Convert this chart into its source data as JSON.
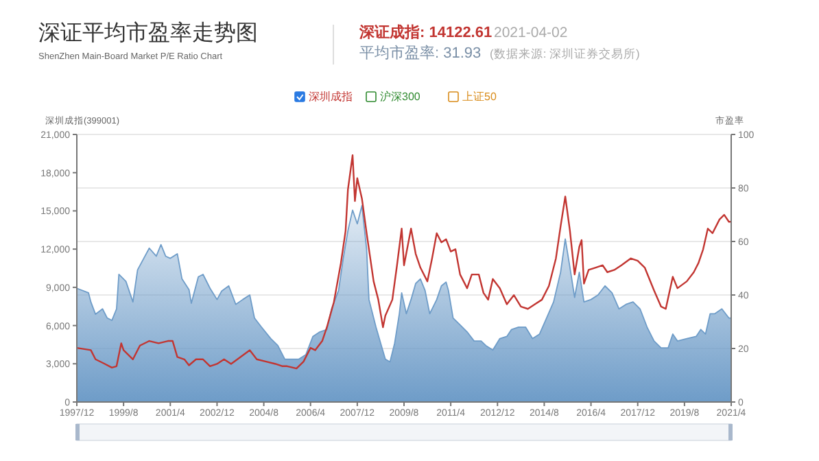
{
  "chart_data": {
    "type": "line",
    "title": "深证平均市盈率走势图",
    "subtitle": "ShenZhen Main-Board Market P/E Ratio Chart",
    "annotations": [
      "深证成指: 14122.61",
      "2021-04-02",
      "平均市盈率: 31.93",
      "(数据来源: 深圳证券交易所)"
    ],
    "ylabel": "深圳成指(399001)",
    "y2label": "市盈率",
    "xlim": [
      "1997-12",
      "2021-04"
    ],
    "xticks": [
      {
        "value": "1997-12",
        "label": "1997/12"
      },
      {
        "value": "1999-08",
        "label": "1999/8"
      },
      {
        "value": "2001-04",
        "label": "2001/4"
      },
      {
        "value": "2002-12",
        "label": "2002/12"
      },
      {
        "value": "2004-08",
        "label": "2004/8"
      },
      {
        "value": "2006-04",
        "label": "2006/4"
      },
      {
        "value": "2007-12",
        "label": "2007/12"
      },
      {
        "value": "2009-08",
        "label": "2009/8"
      },
      {
        "value": "2011-04",
        "label": "2011/4"
      },
      {
        "value": "2012-12",
        "label": "2012/12"
      },
      {
        "value": "2014-08",
        "label": "2014/8"
      },
      {
        "value": "2016-04",
        "label": "2016/4"
      },
      {
        "value": "2017-12",
        "label": "2017/12"
      },
      {
        "value": "2019-08",
        "label": "2019/8"
      },
      {
        "value": "2021-04",
        "label": "2021/4"
      }
    ],
    "ylim": [
      0,
      21000
    ],
    "yticks": [
      {
        "value": 0,
        "label": "0"
      },
      {
        "value": 3000,
        "label": "3,000"
      },
      {
        "value": 6000,
        "label": "6,000"
      },
      {
        "value": 9000,
        "label": "9,000"
      },
      {
        "value": 12000,
        "label": "12,000"
      },
      {
        "value": 15000,
        "label": "15,000"
      },
      {
        "value": 18000,
        "label": "18,000"
      },
      {
        "value": 21000,
        "label": "21,000"
      }
    ],
    "y2lim": [
      0,
      100
    ],
    "y2ticks": [
      0,
      20,
      40,
      60,
      80,
      100
    ],
    "grid": "y2",
    "legend": "top",
    "series": [
      {
        "type": "area",
        "axis": "y2",
        "color": "#6e9cc8",
        "x": [
          "1997-12",
          "1998-05",
          "1998-06",
          "1998-08",
          "1998-11",
          "1999-01",
          "1999-03",
          "1999-05",
          "1999-06",
          "1999-09",
          "1999-12",
          "2000-02",
          "2000-07",
          "2000-10",
          "2000-12",
          "2001-02",
          "2001-04",
          "2001-07",
          "2001-09",
          "2001-12",
          "2002-01",
          "2002-04",
          "2002-06",
          "2002-09",
          "2002-12",
          "2003-02",
          "2003-05",
          "2003-08",
          "2003-11",
          "2004-02",
          "2004-04",
          "2004-07",
          "2004-11",
          "2005-02",
          "2005-05",
          "2005-08",
          "2005-11",
          "2006-02",
          "2006-05",
          "2006-08",
          "2006-11",
          "2007-01",
          "2007-04",
          "2007-06",
          "2007-08",
          "2007-10",
          "2007-12",
          "2008-02",
          "2008-04",
          "2008-05",
          "2008-08",
          "2008-10",
          "2008-12",
          "2009-02",
          "2009-04",
          "2009-06",
          "2009-07",
          "2009-09",
          "2009-11",
          "2010-01",
          "2010-03",
          "2010-05",
          "2010-07",
          "2010-10",
          "2010-12",
          "2011-02",
          "2011-03",
          "2011-05",
          "2011-08",
          "2011-11",
          "2012-02",
          "2012-05",
          "2012-07",
          "2012-10",
          "2013-01",
          "2013-04",
          "2013-06",
          "2013-09",
          "2013-12",
          "2014-03",
          "2014-06",
          "2014-09",
          "2014-12",
          "2015-03",
          "2015-05",
          "2015-07",
          "2015-09",
          "2015-11",
          "2016-01",
          "2016-04",
          "2016-07",
          "2016-10",
          "2017-01",
          "2017-04",
          "2017-07",
          "2017-10",
          "2018-01",
          "2018-04",
          "2018-07",
          "2018-10",
          "2019-01",
          "2019-03",
          "2019-05",
          "2019-09",
          "2020-01",
          "2020-03",
          "2020-05",
          "2020-07",
          "2020-09",
          "2020-12",
          "2021-03",
          "2021-04"
        ],
        "values": [
          42.5,
          40.8,
          37.4,
          32.8,
          34.8,
          31.4,
          30.5,
          34.8,
          47.7,
          45.1,
          37.4,
          49.4,
          57.5,
          54.5,
          58.8,
          54.5,
          53.7,
          55.4,
          46,
          42,
          36.9,
          46.8,
          47.7,
          42.5,
          38.3,
          41.5,
          43.4,
          36.5,
          38.3,
          40,
          31.4,
          28,
          23.7,
          21.1,
          16,
          16,
          16,
          17.7,
          24.5,
          26.2,
          27.1,
          34.8,
          41.7,
          53.7,
          64,
          71.7,
          66.6,
          73.4,
          57.1,
          38.3,
          28,
          22,
          16,
          15,
          22,
          33,
          40.8,
          33,
          38.3,
          44.3,
          46,
          41.7,
          33,
          38.3,
          43.4,
          44.8,
          41.7,
          31.4,
          28.8,
          26.2,
          22.8,
          22.8,
          21.1,
          19.4,
          23.7,
          24.5,
          27.1,
          28,
          28,
          23.7,
          25.4,
          31.4,
          37.4,
          48.5,
          60.9,
          50.3,
          39.1,
          48.5,
          37.4,
          38.3,
          40,
          43.4,
          40.8,
          34.8,
          36.5,
          37.4,
          34.8,
          28,
          22.8,
          20.2,
          20.2,
          25.4,
          22.8,
          23.7,
          24.5,
          27.1,
          25.4,
          33,
          33,
          34.8,
          31.4,
          31.4
        ]
      },
      {
        "type": "line",
        "name": "深圳成指",
        "color": "#c23531",
        "x": [
          "1997-12",
          "1998-06",
          "1998-08",
          "1998-12",
          "1999-03",
          "1999-05",
          "1999-07",
          "1999-08",
          "1999-12",
          "2000-03",
          "2000-07",
          "2000-11",
          "2001-03",
          "2001-05",
          "2001-07",
          "2001-10",
          "2001-12",
          "2002-03",
          "2002-06",
          "2002-09",
          "2002-12",
          "2003-03",
          "2003-06",
          "2003-10",
          "2004-02",
          "2004-05",
          "2004-09",
          "2005-01",
          "2005-04",
          "2005-06",
          "2005-10",
          "2006-01",
          "2006-04",
          "2006-06",
          "2006-09",
          "2006-11",
          "2007-02",
          "2007-05",
          "2007-07",
          "2007-08",
          "2007-10",
          "2007-11",
          "2007-12",
          "2008-02",
          "2008-04",
          "2008-07",
          "2008-09",
          "2008-11",
          "2008-12",
          "2009-03",
          "2009-05",
          "2009-07",
          "2009-08",
          "2009-11",
          "2010-01",
          "2010-03",
          "2010-06",
          "2010-08",
          "2010-10",
          "2010-12",
          "2011-02",
          "2011-04",
          "2011-06",
          "2011-08",
          "2011-11",
          "2012-01",
          "2012-04",
          "2012-06",
          "2012-08",
          "2012-10",
          "2013-01",
          "2013-04",
          "2013-07",
          "2013-10",
          "2014-01",
          "2014-04",
          "2014-07",
          "2014-10",
          "2015-01",
          "2015-03",
          "2015-05",
          "2015-07",
          "2015-09",
          "2015-11",
          "2015-12",
          "2016-01",
          "2016-03",
          "2016-06",
          "2016-09",
          "2016-11",
          "2017-02",
          "2017-05",
          "2017-09",
          "2017-12",
          "2018-03",
          "2018-07",
          "2018-10",
          "2018-12",
          "2019-03",
          "2019-05",
          "2019-09",
          "2019-12",
          "2020-02",
          "2020-04",
          "2020-06",
          "2020-08",
          "2020-11",
          "2021-01",
          "2021-03",
          "2021-04"
        ],
        "values": [
          4250,
          4070,
          3350,
          2990,
          2700,
          2810,
          4610,
          4070,
          3350,
          4430,
          4790,
          4610,
          4790,
          4790,
          3530,
          3350,
          2880,
          3350,
          3350,
          2810,
          2990,
          3350,
          2990,
          3530,
          4070,
          3350,
          3170,
          2990,
          2810,
          2810,
          2630,
          3170,
          4250,
          4070,
          4790,
          5870,
          7850,
          10910,
          13430,
          16670,
          19370,
          15770,
          17570,
          15950,
          13250,
          9470,
          8030,
          5870,
          6770,
          8030,
          10730,
          13610,
          10730,
          13610,
          11630,
          10550,
          9470,
          11270,
          13250,
          12530,
          12780,
          11810,
          11990,
          10010,
          8930,
          10010,
          10010,
          8570,
          8030,
          9650,
          8930,
          7670,
          8390,
          7490,
          7310,
          7670,
          8030,
          9110,
          11270,
          13790,
          16130,
          13430,
          10010,
          12170,
          12710,
          9290,
          10370,
          10550,
          10730,
          10190,
          10370,
          10730,
          11270,
          11090,
          10550,
          8750,
          7490,
          7310,
          9830,
          8930,
          9470,
          10190,
          10910,
          11990,
          13610,
          13250,
          14330,
          14690,
          14150,
          14150
        ]
      },
      {
        "type": "line",
        "name": "沪深300",
        "color": "#2f8a2f"
      },
      {
        "type": "line",
        "name": "上证50",
        "color": "#d98c1a"
      }
    ]
  }
}
